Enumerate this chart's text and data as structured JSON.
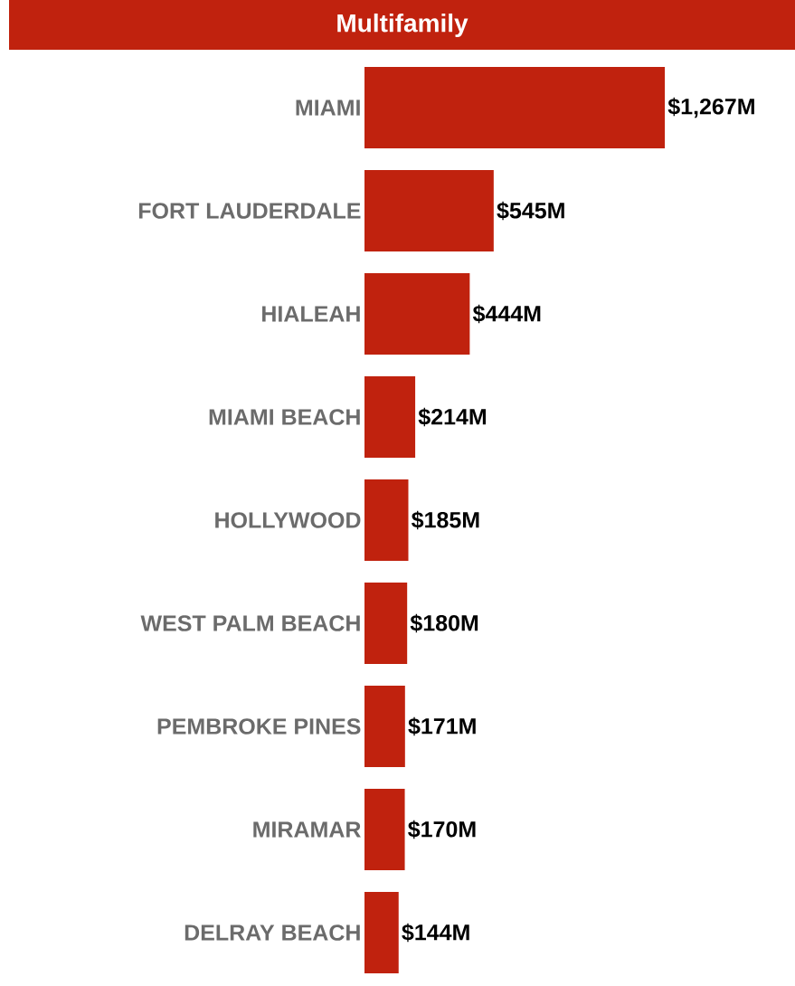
{
  "chart_data": {
    "type": "bar",
    "orientation": "horizontal",
    "title": "Multifamily",
    "categories": [
      "MIAMI",
      "FORT LAUDERDALE",
      "HIALEAH",
      "MIAMI BEACH",
      "HOLLYWOOD",
      "WEST PALM BEACH",
      "PEMBROKE PINES",
      "MIRAMAR",
      "DELRAY BEACH"
    ],
    "values": [
      1267,
      545,
      444,
      214,
      185,
      180,
      171,
      170,
      144
    ],
    "value_labels": [
      "$1,267M",
      "$545M",
      "$444M",
      "$214M",
      "$185M",
      "$180M",
      "$171M",
      "$170M",
      "$144M"
    ],
    "color": "#c0220e"
  }
}
